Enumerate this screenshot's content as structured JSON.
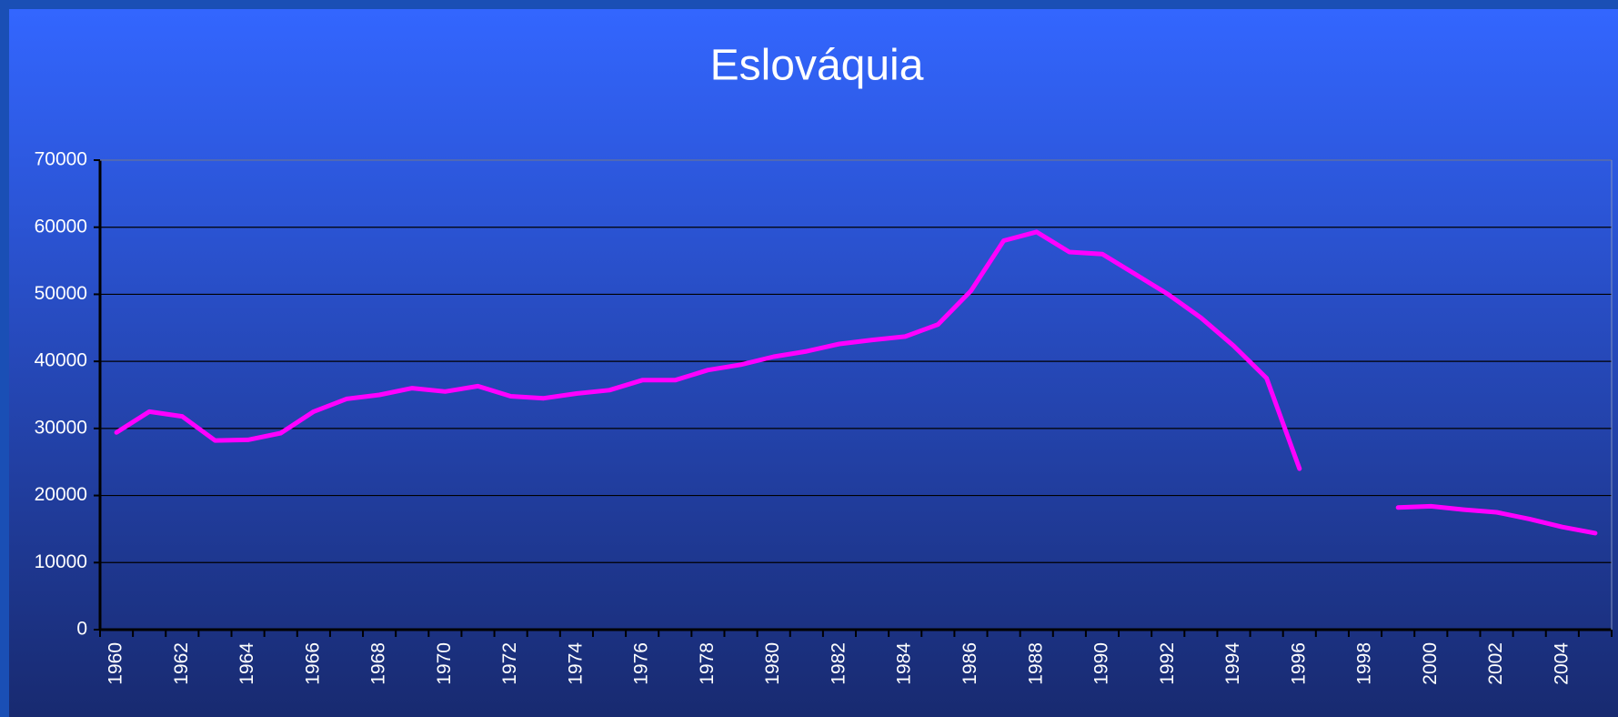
{
  "chart_data": {
    "type": "line",
    "title": "Eslováquia",
    "categories": [
      "1960",
      null,
      "1962",
      null,
      "1964",
      null,
      "1966",
      null,
      "1968",
      null,
      "1970",
      null,
      "1972",
      null,
      "1974",
      null,
      "1976",
      null,
      "1978",
      null,
      "1980",
      null,
      "1982",
      null,
      "1984",
      null,
      "1986",
      null,
      "1988",
      null,
      "1990",
      null,
      "1992",
      null,
      "1994",
      null,
      "1996",
      null,
      "1998",
      null,
      "2000",
      null,
      "2002",
      null,
      "2004",
      null
    ],
    "series": [
      {
        "name": "Eslováquia",
        "color": "#ff00ff",
        "values": [
          29400,
          32500,
          31800,
          28200,
          28300,
          29300,
          32500,
          34400,
          35000,
          36000,
          35500,
          36300,
          34800,
          34500,
          35200,
          35700,
          37200,
          37200,
          38700,
          39500,
          40700,
          41500,
          42600,
          43200,
          43700,
          45500,
          50500,
          58000,
          59300,
          56300,
          56000,
          53000,
          50000,
          46500,
          42300,
          37500,
          24000,
          null,
          null,
          18200,
          18400,
          17900,
          17500,
          16500,
          15300,
          14400
        ]
      }
    ],
    "ylim": [
      0,
      70000
    ],
    "yticks": [
      0,
      10000,
      20000,
      30000,
      40000,
      50000,
      60000,
      70000
    ],
    "grid": true
  }
}
